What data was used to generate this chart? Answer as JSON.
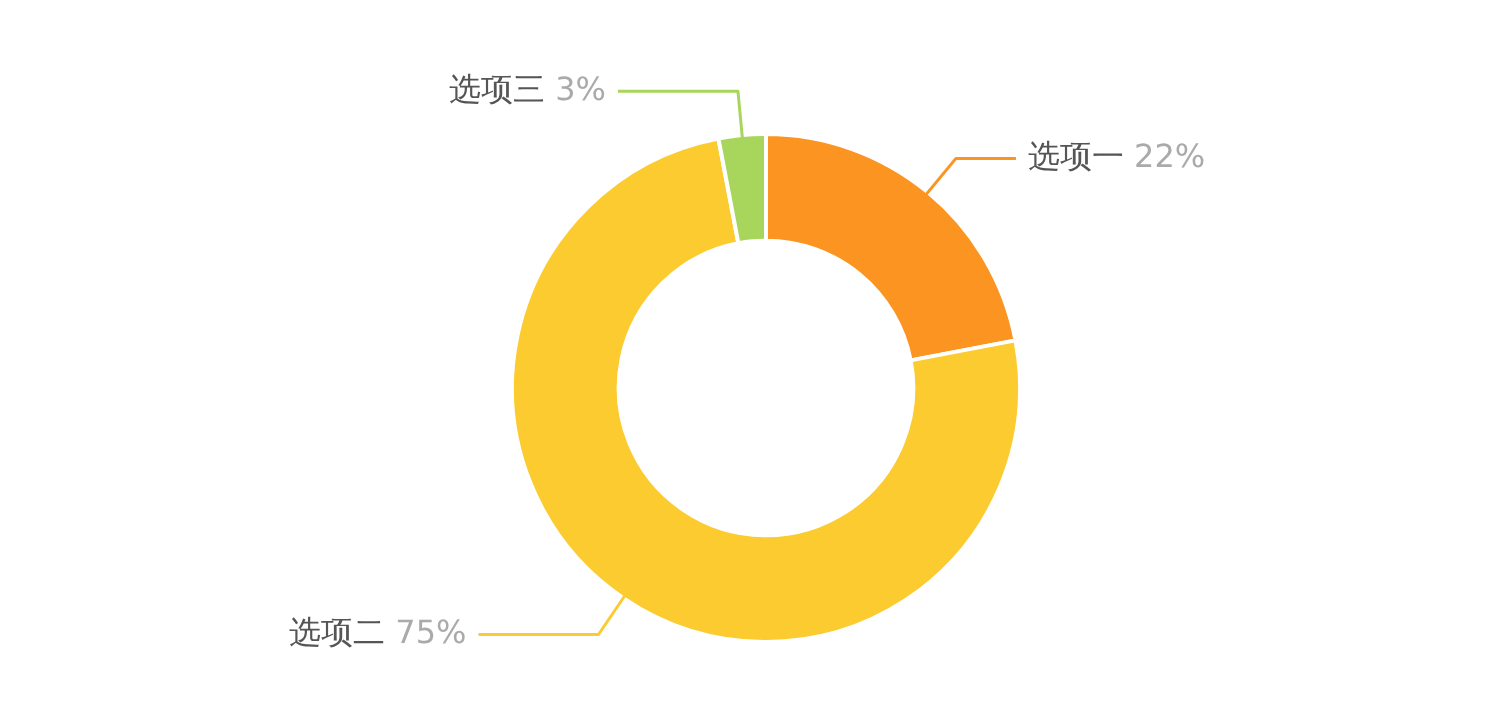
{
  "chart_data": {
    "type": "donut",
    "categories": [
      "选项一",
      "选项二",
      "选项三"
    ],
    "values": [
      22,
      75,
      3
    ],
    "colors": [
      "#fb9421",
      "#fccb2f",
      "#a8d65c"
    ],
    "value_labels": [
      "22%",
      "75%",
      "3%"
    ],
    "legend": false
  }
}
